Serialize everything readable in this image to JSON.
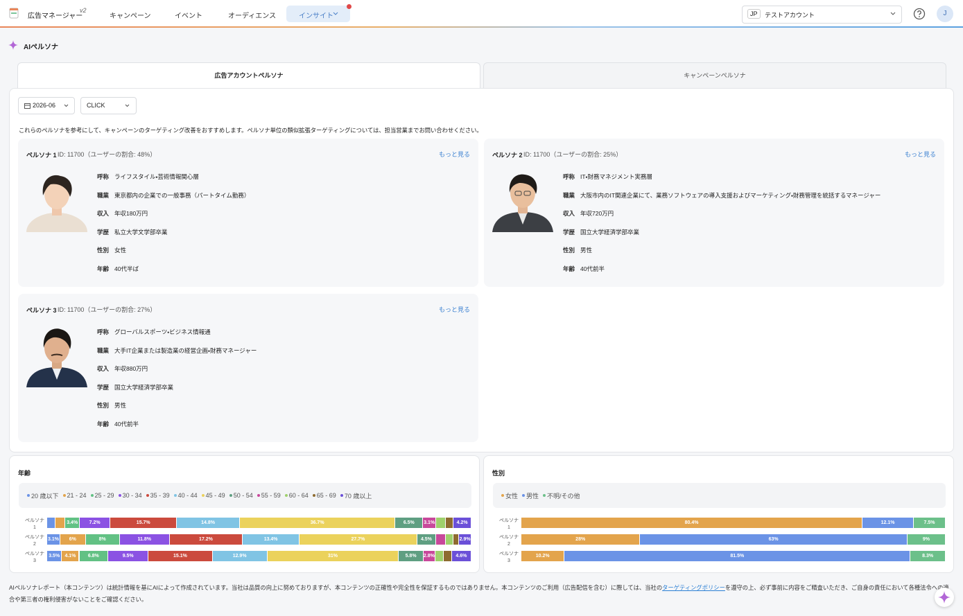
{
  "header": {
    "app_name": "広告マネージャー",
    "version": "v2",
    "nav": [
      "キャンペーン",
      "イベント",
      "オーディエンス",
      "インサイト"
    ],
    "account_code": "JP",
    "account_name": "テストアカウント",
    "avatar": "J"
  },
  "page_title": "AIペルソナ",
  "tabs": [
    "広告アカウントペルソナ",
    "キャンペーンペルソナ"
  ],
  "filters": {
    "month": "2026-06",
    "metric": "CLICK"
  },
  "intro": "これらのペルソナを参考にして、キャンペーンのターゲティング改善をおすすめします。ペルソナ単位の類似拡張ターゲティングについては、担当営業までお問い合わせください。",
  "personas": [
    {
      "name": "ペルソナ 1",
      "id": "ID: 11700（ユーザーの割合: 48%）",
      "more": "もっと見る",
      "fields": [
        [
          "呼称",
          "ライフスタイル・芸術情報関心層"
        ],
        [
          "職業",
          "東京都内の企業での一般事務（パートタイム勤務）"
        ],
        [
          "収入",
          "年収180万円"
        ],
        [
          "学歴",
          "私立大学文学部卒業"
        ],
        [
          "性別",
          "女性"
        ],
        [
          "年齢",
          "40代半ば"
        ]
      ]
    },
    {
      "name": "ペルソナ 2",
      "id": "ID: 11700（ユーザーの割合: 25%）",
      "more": "もっと見る",
      "fields": [
        [
          "呼称",
          "IT・財務マネジメント実務層"
        ],
        [
          "職業",
          "大阪市内のIT関連企業にて、業務ソフトウェアの導入支援およびマーケティング・財務管理を統括するマネージャー"
        ],
        [
          "収入",
          "年収720万円"
        ],
        [
          "学歴",
          "国立大学経済学部卒業"
        ],
        [
          "性別",
          "男性"
        ],
        [
          "年齢",
          "40代前半"
        ]
      ]
    },
    {
      "name": "ペルソナ 3",
      "id": "ID: 11700（ユーザーの割合: 27%）",
      "more": "もっと見る",
      "fields": [
        [
          "呼称",
          "グローバルスポーツ・ビジネス情報通"
        ],
        [
          "職業",
          "大手IT企業または製造業の経営企画・財務マネージャー"
        ],
        [
          "収入",
          "年収880万円"
        ],
        [
          "学歴",
          "国立大学経済学部卒業"
        ],
        [
          "性別",
          "男性"
        ],
        [
          "年齢",
          "40代前半"
        ]
      ]
    }
  ],
  "chart_data": [
    {
      "type": "bar",
      "orientation": "horizontal",
      "stacked": true,
      "title": "年齢",
      "legend": "top",
      "xlim": [
        0,
        100
      ],
      "categories": [
        "ペルソナ 1",
        "ペルソナ 2",
        "ペルソナ 3"
      ],
      "series": [
        {
          "name": "20 歳以下",
          "color": "#6b93e6",
          "values": [
            2.0,
            3.1,
            3.5
          ],
          "value_labels": [
            null,
            "3.1%",
            "3.5%"
          ]
        },
        {
          "name": "21 - 24",
          "color": "#e3a44c",
          "values": [
            2.3,
            6,
            4.1
          ],
          "value_labels": [
            null,
            "6%",
            "4.1%"
          ]
        },
        {
          "name": "25 - 29",
          "color": "#62c184",
          "values": [
            3.4,
            8,
            6.8
          ],
          "value_labels": [
            "3.4%",
            "8%",
            "6.8%"
          ]
        },
        {
          "name": "30 - 34",
          "color": "#8b52e3",
          "values": [
            7.2,
            11.8,
            9.5
          ],
          "value_labels": [
            "7.2%",
            "11.8%",
            "9.5%"
          ]
        },
        {
          "name": "35 - 39",
          "color": "#cb4a3d",
          "values": [
            15.7,
            17.2,
            15.1
          ],
          "value_labels": [
            "15.7%",
            "17.2%",
            "15.1%"
          ]
        },
        {
          "name": "40 - 44",
          "color": "#80c4e4",
          "values": [
            14.8,
            13.4,
            12.9
          ],
          "value_labels": [
            "14.8%",
            "13.4%",
            "12.9%"
          ]
        },
        {
          "name": "45 - 49",
          "color": "#ebd25c",
          "values": [
            36.7,
            27.7,
            31
          ],
          "value_labels": [
            "36.7%",
            "27.7%",
            "31%"
          ]
        },
        {
          "name": "50 - 54",
          "color": "#5f9f82",
          "values": [
            6.5,
            4.5,
            5.8
          ],
          "value_labels": [
            "6.5%",
            "4.5%",
            "5.8%"
          ]
        },
        {
          "name": "55 - 59",
          "color": "#c8489b",
          "values": [
            3.1,
            2.2,
            2.8
          ],
          "value_labels": [
            "3.1%",
            null,
            "2.8%"
          ]
        },
        {
          "name": "60 - 64",
          "color": "#9fd06c",
          "values": [
            2.2,
            1.8,
            2.0
          ],
          "value_labels": [
            null,
            null,
            null
          ]
        },
        {
          "name": "65 - 69",
          "color": "#8e6b30",
          "values": [
            1.9,
            1.4,
            1.9
          ],
          "value_labels": [
            null,
            null,
            null
          ]
        },
        {
          "name": "70 歳以上",
          "color": "#6b50d8",
          "values": [
            4.2,
            2.9,
            4.6
          ],
          "value_labels": [
            "4.2%",
            "2.9%",
            "4.6%"
          ]
        }
      ]
    },
    {
      "type": "bar",
      "orientation": "horizontal",
      "stacked": true,
      "title": "性別",
      "legend": "top",
      "xlim": [
        0,
        100
      ],
      "categories": [
        "ペルソナ 1",
        "ペルソナ 2",
        "ペルソナ 3"
      ],
      "series": [
        {
          "name": "女性",
          "color": "#e3a44c",
          "values": [
            80.4,
            28,
            10.2
          ],
          "value_labels": [
            "80.4%",
            "28%",
            "10.2%"
          ]
        },
        {
          "name": "男性",
          "color": "#6b93e6",
          "values": [
            12.1,
            63,
            81.5
          ],
          "value_labels": [
            "12.1%",
            "63%",
            "81.5%"
          ]
        },
        {
          "name": "不明/その他",
          "color": "#6cc08a",
          "values": [
            7.5,
            9,
            8.3
          ],
          "value_labels": [
            "7.5%",
            "9%",
            "8.3%"
          ]
        }
      ]
    }
  ],
  "footer": {
    "text_before": "AIペルソナレポート（本コンテンツ）は統計情報を基にAIによって作成されています。当社は品質の向上に努めておりますが、本コンテンツの正確性や完全性を保証するものではありません。本コンテンツのご利用（広告配信を含む）に際しては、当社の",
    "link": "ターゲティングポリシー",
    "text_after": "を遵守の上、必ず事前に内容をご精査いただき、ご自身の責任において各種法令への適合や第三者の権利侵害がないことをご確認ください。"
  }
}
